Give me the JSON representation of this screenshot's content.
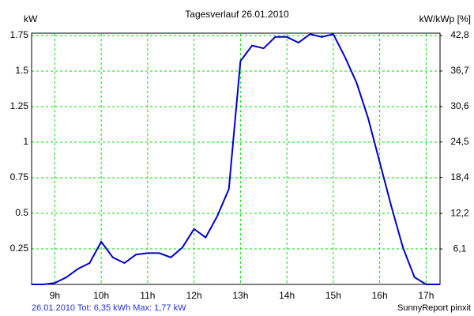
{
  "chart_data": {
    "type": "line",
    "title": "Tagesverlauf 26.01.2010",
    "ylabel": "kW",
    "y2label": "kW/kWp [%]",
    "footer_left": "26.01.2010 Tot: 6,35 kWh Max: 1,77 kW",
    "footer_right": "SunnyReport pinxit",
    "x": [
      8.5,
      8.75,
      9,
      9.25,
      9.5,
      9.75,
      10,
      10.25,
      10.5,
      10.75,
      11,
      11.25,
      11.5,
      11.75,
      12,
      12.25,
      12.5,
      12.75,
      13,
      13.25,
      13.5,
      13.75,
      14,
      14.25,
      14.5,
      14.75,
      15,
      15.25,
      15.5,
      15.75,
      16,
      16.25,
      16.5,
      16.75,
      17,
      17.3
    ],
    "series": [
      {
        "name": "kW",
        "color": "#0000cc",
        "values": [
          0,
          0,
          0.01,
          0.05,
          0.11,
          0.15,
          0.3,
          0.19,
          0.15,
          0.21,
          0.22,
          0.22,
          0.19,
          0.26,
          0.39,
          0.33,
          0.48,
          0.67,
          1.57,
          1.68,
          1.66,
          1.74,
          1.74,
          1.7,
          1.76,
          1.74,
          1.76,
          1.6,
          1.42,
          1.17,
          0.86,
          0.55,
          0.26,
          0.05,
          0,
          0
        ]
      }
    ],
    "xlim": [
      8.5,
      17.3
    ],
    "xticks": [
      {
        "value": 9,
        "label": "9h"
      },
      {
        "value": 10,
        "label": "10h"
      },
      {
        "value": 11,
        "label": "11h"
      },
      {
        "value": 12,
        "label": "12h"
      },
      {
        "value": 13,
        "label": "13h"
      },
      {
        "value": 14,
        "label": "14h"
      },
      {
        "value": 15,
        "label": "15h"
      },
      {
        "value": 16,
        "label": "16h"
      },
      {
        "value": 17,
        "label": "17h"
      }
    ],
    "ylim": [
      0,
      1.75
    ],
    "yticks": [
      0.25,
      0.5,
      0.75,
      1,
      1.25,
      1.5,
      1.75
    ],
    "y2lim": [
      0,
      42.8
    ],
    "y2ticks": [
      {
        "value": 6.1,
        "label": "6,1"
      },
      {
        "value": 12.2,
        "label": "12,2"
      },
      {
        "value": 18.4,
        "label": "18,4"
      },
      {
        "value": 24.5,
        "label": "24,5"
      },
      {
        "value": 30.6,
        "label": "30,6"
      },
      {
        "value": 36.7,
        "label": "36,7"
      },
      {
        "value": 42.8,
        "label": "42,8"
      }
    ],
    "grid": true,
    "grid_color": "#00dd00"
  }
}
